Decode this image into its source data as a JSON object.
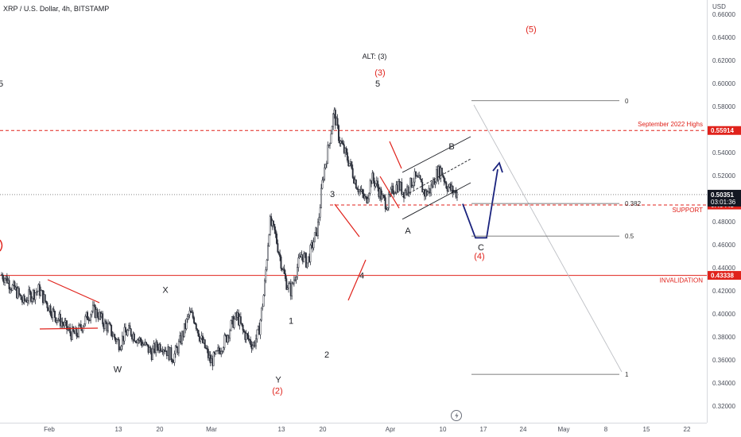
{
  "chart_data": {
    "type": "candlestick",
    "title": "XRP / U.S. Dollar, 4h, BITSTAMP",
    "currency": "USD",
    "y_range": [
      0.31,
      0.67
    ],
    "y_ticks": [
      "0.66000",
      "0.64000",
      "0.62000",
      "0.60000",
      "0.58000",
      "0.56000",
      "0.54000",
      "0.52000",
      "0.50000",
      "0.48000",
      "0.46000",
      "0.44000",
      "0.42000",
      "0.40000",
      "0.38000",
      "0.36000",
      "0.34000",
      "0.32000"
    ],
    "y_tick_values": [
      0.66,
      0.64,
      0.62,
      0.6,
      0.58,
      0.56,
      0.54,
      0.52,
      0.5,
      0.48,
      0.46,
      0.44,
      0.42,
      0.4,
      0.38,
      0.36,
      0.34,
      0.32
    ],
    "x_ticks": [
      "Feb",
      "13",
      "20",
      "Mar",
      "13",
      "20",
      "Apr",
      "10",
      "17",
      "24",
      "May",
      "8",
      "15",
      "22"
    ],
    "price_path": [
      [
        0.434,
        0.43
      ],
      [
        0.423,
        0.418
      ],
      [
        0.41,
        0.415
      ],
      [
        0.418,
        0.421
      ],
      [
        0.412,
        0.405
      ],
      [
        0.398,
        0.394
      ],
      [
        0.388,
        0.383
      ],
      [
        0.382,
        0.39
      ],
      [
        0.398,
        0.403
      ],
      [
        0.4,
        0.392
      ],
      [
        0.388,
        0.38
      ],
      [
        0.374,
        0.383
      ],
      [
        0.385,
        0.38
      ],
      [
        0.376,
        0.371
      ],
      [
        0.366,
        0.372
      ],
      [
        0.373,
        0.367
      ],
      [
        0.362,
        0.372
      ],
      [
        0.385,
        0.4
      ],
      [
        0.396,
        0.38
      ],
      [
        0.37,
        0.358
      ],
      [
        0.363,
        0.372
      ],
      [
        0.38,
        0.392
      ],
      [
        0.398,
        0.385
      ],
      [
        0.378,
        0.373
      ],
      [
        0.385,
        0.42
      ],
      [
        0.48,
        0.47
      ],
      [
        0.448,
        0.428
      ],
      [
        0.42,
        0.438
      ],
      [
        0.452,
        0.444
      ],
      [
        0.46,
        0.475
      ],
      [
        0.52,
        0.545
      ],
      [
        0.575,
        0.552
      ],
      [
        0.54,
        0.53
      ],
      [
        0.515,
        0.505
      ],
      [
        0.498,
        0.518
      ],
      [
        0.512,
        0.5
      ],
      [
        0.495,
        0.508
      ],
      [
        0.512,
        0.506
      ],
      [
        0.51,
        0.518
      ],
      [
        0.514,
        0.504
      ],
      [
        0.508,
        0.52
      ],
      [
        0.525,
        0.512
      ],
      [
        0.507,
        0.505
      ]
    ],
    "levels": [
      {
        "name": "September 2022 Highs",
        "value": 0.55914,
        "label": "0.55914"
      },
      {
        "name": "SUPPORT",
        "value": 0.49445,
        "label": "0.49445"
      },
      {
        "name": "INVALIDATION",
        "value": 0.43338,
        "label": "0.43338"
      }
    ],
    "current_price": {
      "value": 0.50351,
      "label": "0.50351",
      "countdown": "03:01:36"
    },
    "fib_levels": [
      {
        "label": "0",
        "value": 0.585
      },
      {
        "label": "0.382",
        "value": 0.4958
      },
      {
        "label": "0.5",
        "value": 0.4675
      },
      {
        "label": "1",
        "value": 0.3475
      }
    ],
    "waves_black": [
      {
        "label": "5",
        "value": 0.6
      },
      {
        "label": "W",
        "value": 0.352
      },
      {
        "label": "X",
        "value": 0.421
      },
      {
        "label": "Y",
        "value": 0.343
      },
      {
        "label": "1",
        "value": 0.394
      },
      {
        "label": "2",
        "value": 0.365
      },
      {
        "label": "3",
        "value": 0.504
      },
      {
        "label": "4",
        "value": 0.4333
      },
      {
        "label": "5",
        "value": 0.6
      },
      {
        "label": "A",
        "value": 0.4725
      },
      {
        "label": "B",
        "value": 0.5455
      },
      {
        "label": "C",
        "value": 0.458
      }
    ],
    "waves_red": [
      {
        "label": "(2)",
        "value": 0.3335
      },
      {
        "label": "(3)",
        "value": 0.6096
      },
      {
        "label": "(4)",
        "value": 0.4505
      },
      {
        "label": "(5)",
        "value": 0.6474
      }
    ],
    "alt_label": "ALT: (3)",
    "projection": {
      "start": 0.4955,
      "low": 0.466,
      "target": 0.531
    }
  }
}
